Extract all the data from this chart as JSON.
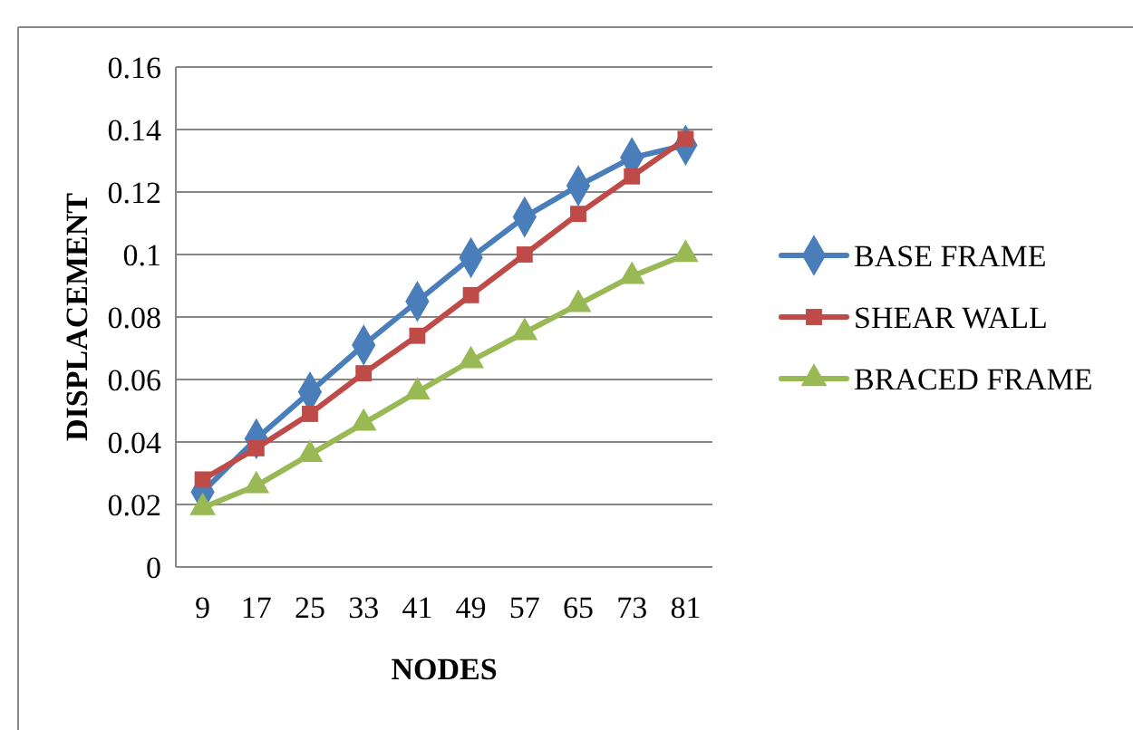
{
  "chart_data": {
    "type": "line",
    "xlabel": "NODES",
    "ylabel": "DISPLACEMENT",
    "categories": [
      "9",
      "17",
      "25",
      "33",
      "41",
      "49",
      "57",
      "65",
      "73",
      "81"
    ],
    "series": [
      {
        "name": "BASE FRAME",
        "color": "#4a7ebb",
        "marker": "diamond",
        "values": [
          0.024,
          0.041,
          0.056,
          0.071,
          0.085,
          0.099,
          0.112,
          0.122,
          0.131,
          0.135
        ]
      },
      {
        "name": "SHEAR WALL",
        "color": "#be4b48",
        "marker": "square",
        "values": [
          0.028,
          0.038,
          0.049,
          0.062,
          0.074,
          0.087,
          0.1,
          0.113,
          0.125,
          0.137
        ]
      },
      {
        "name": "BRACED FRAME",
        "color": "#98b954",
        "marker": "triangle",
        "values": [
          0.019,
          0.026,
          0.036,
          0.046,
          0.056,
          0.066,
          0.075,
          0.084,
          0.093,
          0.1
        ]
      }
    ],
    "ylim": [
      0,
      0.16
    ],
    "yticks": [
      0,
      0.02,
      0.04,
      0.06,
      0.08,
      0.1,
      0.12,
      0.14,
      0.16
    ],
    "grid": "y",
    "legend": "right",
    "line_style": "solid"
  }
}
